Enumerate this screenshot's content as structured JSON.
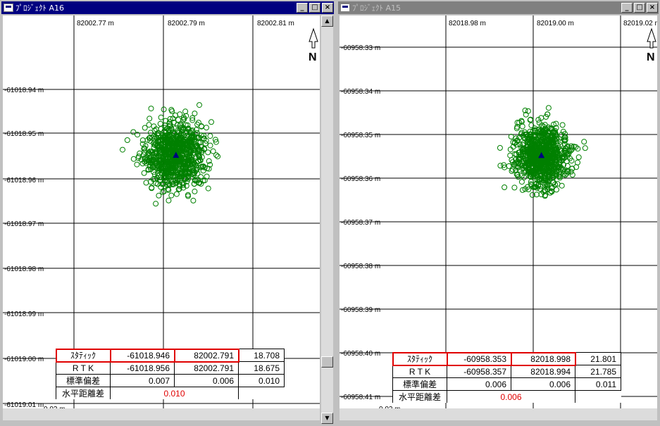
{
  "windows": [
    {
      "title": "ﾌﾟﾛｼﾞｪｸﾄ A16",
      "active": true,
      "x_ticks": [
        "82002.77 m",
        "82002.79 m",
        "82002.81 m"
      ],
      "y_ticks": [
        "-61018.94 m",
        "-61018.95 m",
        "-61018.96 m",
        "-61018.97 m",
        "-61018.98 m",
        "-61018.99 m",
        "-61019.00 m",
        "-61019.01 m"
      ],
      "north_label": "N",
      "table": {
        "rows": [
          {
            "label": "ｽﾀﾃｨｯｸ",
            "c1": "-61018.946",
            "c2": "82002.791",
            "c3": "18.708"
          },
          {
            "label": "R T K",
            "c1": "-61018.956",
            "c2": "82002.791",
            "c3": "18.675"
          },
          {
            "label": "標準偏差",
            "c1": "0.007",
            "c2": "0.006",
            "c3": "0.010"
          }
        ],
        "horizontal_label": "水平距離差",
        "horizontal_value": "0.010"
      },
      "scale_label": "0.02 m"
    },
    {
      "title": "ﾌﾟﾛｼﾞｪｸﾄ A15",
      "active": false,
      "x_ticks": [
        "82018.98 m",
        "82019.00 m",
        "82019.02 m"
      ],
      "y_ticks": [
        "-60958.33 m",
        "-60958.34 m",
        "-60958.35 m",
        "-60958.36 m",
        "-60958.37 m",
        "-60958.38 m",
        "-60958.39 m",
        "-60958.40 m",
        "-60958.41 m"
      ],
      "north_label": "N",
      "table": {
        "rows": [
          {
            "label": "ｽﾀﾃｨｯｸ",
            "c1": "-60958.353",
            "c2": "82018.998",
            "c3": "21.801"
          },
          {
            "label": "R T K",
            "c1": "-60958.357",
            "c2": "82018.994",
            "c3": "21.785"
          },
          {
            "label": "標準偏差",
            "c1": "0.006",
            "c2": "0.006",
            "c3": "0.011"
          }
        ],
        "horizontal_label": "水平距離差",
        "horizontal_value": "0.006"
      },
      "scale_label": "0.02 m"
    }
  ],
  "colors": {
    "points": "#008000",
    "center_marker": "#000080",
    "highlight": "#e00000",
    "grid": "#000000"
  },
  "chart_data": [
    {
      "type": "scatter",
      "title": "",
      "xlabel": "",
      "ylabel": "",
      "xlim": [
        82002.7414,
        82002.8322
      ],
      "ylim": [
        -61019.0108,
        -61018.9257
      ],
      "center": {
        "x": 82002.791,
        "y": -61018.956
      },
      "spread": {
        "sx": 0.0045,
        "sy": 0.0035
      },
      "n_points": 900,
      "seed": 16,
      "grid": true
    },
    {
      "type": "scatter",
      "title": "",
      "xlabel": "",
      "ylabel": "",
      "xlim": [
        82018.9518,
        82019.0245
      ],
      "ylim": [
        -60958.4108,
        -60958.3272
      ],
      "center": {
        "x": 82018.998,
        "y": -60958.357
      },
      "spread": {
        "sx": 0.003,
        "sy": 0.0032
      },
      "n_points": 900,
      "seed": 15,
      "grid": true
    }
  ]
}
